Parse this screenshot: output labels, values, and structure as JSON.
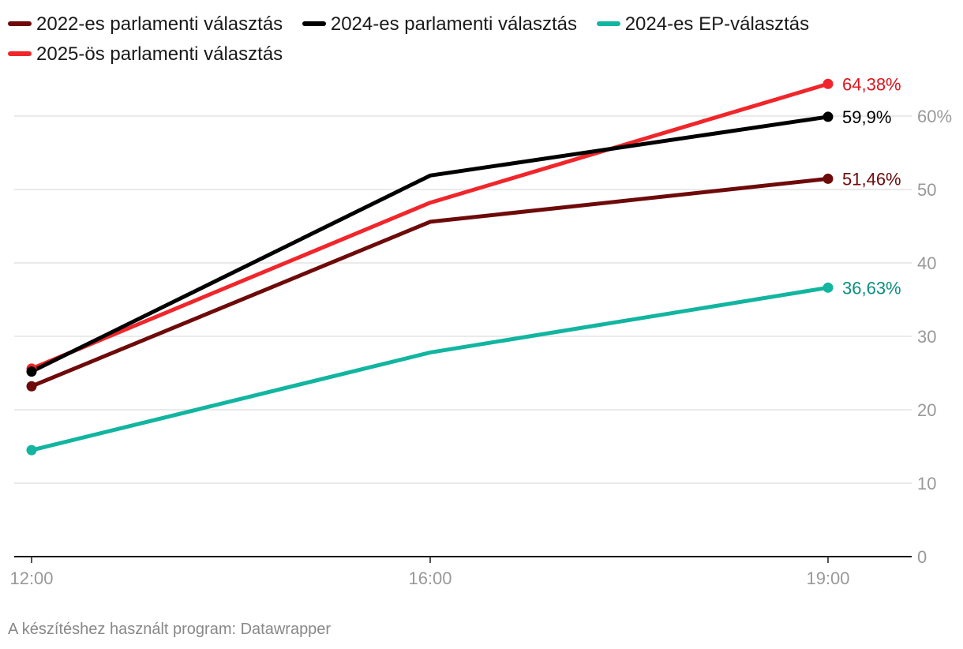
{
  "chart_data": {
    "type": "line",
    "x": [
      "12:00",
      "16:00",
      "19:00"
    ],
    "ylim": [
      0,
      60
    ],
    "yticks": [
      0,
      10,
      20,
      30,
      40,
      50,
      60
    ],
    "ytick_labels": [
      "0",
      "10",
      "20",
      "30",
      "40",
      "50",
      "60%"
    ],
    "series": [
      {
        "name": "2024-es EP-választás",
        "color": "#12b59f",
        "label_color": "#0a8f7c",
        "values": [
          14.5,
          27.8,
          36.63
        ],
        "end_label": "36,63%"
      },
      {
        "name": "2022-es parlamenti választás",
        "color": "#6e0a0a",
        "label_color": "#6e0a0a",
        "values": [
          23.2,
          45.6,
          51.46
        ],
        "end_label": "51,46%"
      },
      {
        "name": "2025-ös parlamenti választás",
        "color": "#f0262b",
        "label_color": "#e0131b",
        "values": [
          25.6,
          48.2,
          64.38
        ],
        "end_label": "64,38%"
      },
      {
        "name": "2024-es parlamenti választás",
        "color": "#000000",
        "label_color": "#000000",
        "values": [
          25.2,
          51.9,
          59.9
        ],
        "end_label": "59,9%"
      }
    ]
  },
  "legend": [
    {
      "label": "2022-es parlamenti választás",
      "color": "#6e0a0a"
    },
    {
      "label": "2024-es parlamenti választás",
      "color": "#000000"
    },
    {
      "label": "2024-es EP-választás",
      "color": "#12b59f"
    },
    {
      "label": "2025-ös parlamenti választás",
      "color": "#f0262b"
    }
  ],
  "footer": "A készítéshez használt program: Datawrapper"
}
